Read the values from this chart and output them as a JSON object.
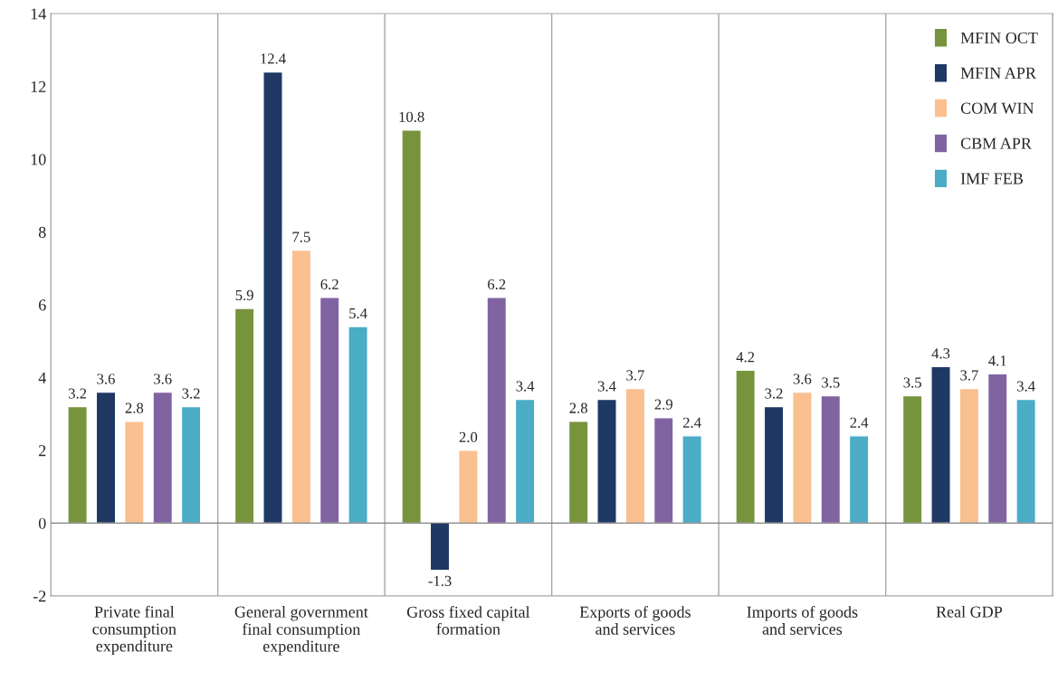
{
  "chart_data": {
    "type": "bar",
    "categories": [
      "Private final\nconsumption\nexpenditure",
      "General government\nfinal consumption\nexpenditure",
      "Gross fixed capital\nformation",
      "Exports of goods\nand services",
      "Imports of goods\nand services",
      "Real GDP"
    ],
    "series": [
      {
        "name": "MFIN OCT",
        "color": "#77933c",
        "values": [
          3.2,
          5.9,
          10.8,
          2.8,
          4.2,
          3.5
        ],
        "value_labels": [
          "3.2",
          "5.9",
          "10.8",
          "2.8",
          "4.2",
          "3.5"
        ]
      },
      {
        "name": "MFIN APR",
        "color": "#1f3864",
        "values": [
          3.6,
          12.4,
          -1.3,
          3.4,
          3.2,
          4.3
        ],
        "value_labels": [
          "3.6",
          "12.4",
          "-1.3",
          "3.4",
          "3.2",
          "4.3"
        ]
      },
      {
        "name": "COM WIN",
        "color": "#fac090",
        "values": [
          2.8,
          7.5,
          2.0,
          3.7,
          3.6,
          3.7
        ],
        "value_labels": [
          "2.8",
          "7.5",
          "2.0",
          "3.7",
          "3.6",
          "3.7"
        ]
      },
      {
        "name": "CBM APR",
        "color": "#8064a2",
        "values": [
          3.6,
          6.2,
          6.2,
          2.9,
          3.5,
          4.1
        ],
        "value_labels": [
          "3.6",
          "6.2",
          "6.2",
          "2.9",
          "3.5",
          "4.1"
        ]
      },
      {
        "name": "IMF FEB",
        "color": "#4bacc6",
        "values": [
          3.2,
          5.4,
          3.4,
          2.4,
          2.4,
          3.4
        ],
        "value_labels": [
          "3.2",
          "5.4",
          "3.4",
          "2.4",
          "2.4",
          "3.4"
        ]
      }
    ],
    "ylim": [
      -2,
      14
    ],
    "yticks": [
      -2,
      0,
      2,
      4,
      6,
      8,
      10,
      12,
      14
    ],
    "grid": "x",
    "legend": "top right"
  }
}
